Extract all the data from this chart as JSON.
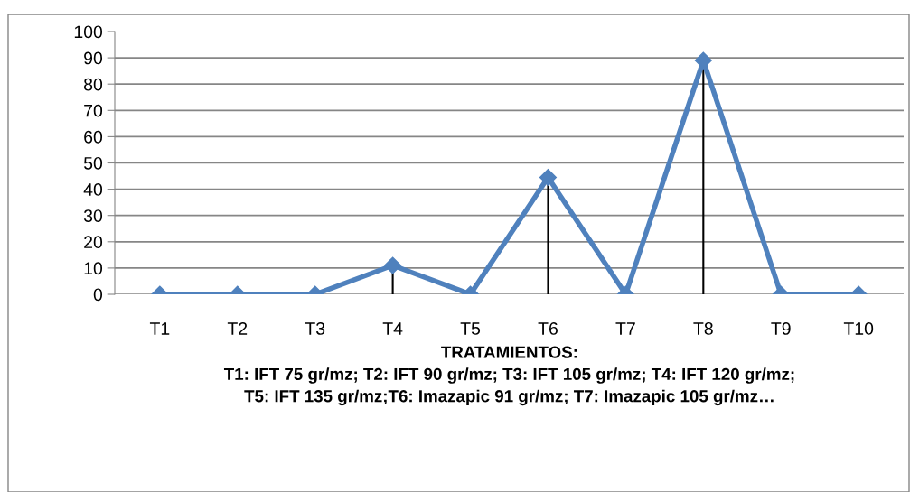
{
  "chart_data": {
    "type": "line",
    "xlabel": "TRATAMIENTOS:\nT1: IFT 75 gr/mz; T2: IFT 90 gr/mz; T3: IFT 105 gr/mz; T4: IFT 120 gr/mz;\nT5: IFT 135 gr/mz;T6: Imazapic 91 gr/mz; T7: Imazapic 105 gr/mz…",
    "categories": [
      "T1",
      "T2",
      "T3",
      "T4",
      "T5",
      "T6",
      "T7",
      "T8",
      "T9",
      "T10"
    ],
    "series": [
      {
        "color": "#4f81bd",
        "values": [
          0,
          0,
          0,
          11,
          0,
          44.5,
          0,
          89,
          0,
          0
        ],
        "errors": [
          null,
          null,
          null,
          [
            0,
            11
          ],
          null,
          [
            0,
            44.5
          ],
          null,
          [
            0,
            89
          ],
          null,
          null
        ]
      }
    ],
    "ylim": [
      0,
      100
    ],
    "yticks": [
      0,
      10,
      20,
      30,
      40,
      50,
      60,
      70,
      80,
      90,
      100
    ],
    "grid": "y",
    "marker": "diamond",
    "line_style": "solid",
    "legend": false
  }
}
